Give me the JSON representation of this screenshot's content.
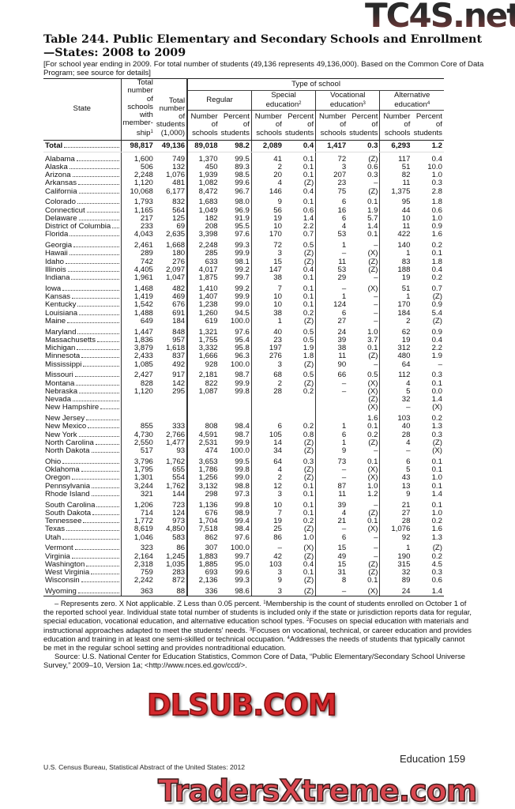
{
  "title": "Table 244. Public Elementary and Secondary Schools and Enrollment—States: 2008 to 2009",
  "headnote": "[For school year ending in 2009. For total number of students (49,136 represents 49,136,000). Based on the Common Core of Data Program; see source for details]",
  "header": {
    "state": "State",
    "total_schools": "Total number of schools with member- ship",
    "total_schools_sup": "1",
    "total_students": "Total number of students (1,000)",
    "type_of_school": "Type of school",
    "groups": [
      {
        "label": "Regular",
        "sup": ""
      },
      {
        "label": "Special education",
        "sup": "2"
      },
      {
        "label": "Vocational education",
        "sup": "3"
      },
      {
        "label": "Alternative education",
        "sup": "4"
      }
    ],
    "number_label": "Number of schools",
    "percent_label": "Percent of students"
  },
  "total_row": [
    "Total",
    "98,817",
    "49,136",
    "89,018",
    "98.2",
    "2,089",
    "0.4",
    "1,417",
    "0.3",
    "6,293",
    "1.2"
  ],
  "rows": [
    [
      "Alabama",
      "1,600",
      "749",
      "1,370",
      "99.5",
      "41",
      "0.1",
      "72",
      "(Z)",
      "117",
      "0.4"
    ],
    [
      "Alaska",
      "506",
      "132",
      "450",
      "89.3",
      "2",
      "0.1",
      "3",
      "0.6",
      "51",
      "10.0"
    ],
    [
      "Arizona",
      "2,248",
      "1,076",
      "1,939",
      "98.5",
      "20",
      "0.1",
      "207",
      "0.3",
      "82",
      "1.0"
    ],
    [
      "Arkansas",
      "1,120",
      "481",
      "1,082",
      "99.6",
      "4",
      "(Z)",
      "23",
      "–",
      "11",
      "0.3"
    ],
    [
      "California",
      "10,068",
      "6,177",
      "8,472",
      "96.7",
      "146",
      "0.4",
      "75",
      "(Z)",
      "1,375",
      "2.8"
    ],
    [
      "Colorado",
      "1,793",
      "832",
      "1,683",
      "98.0",
      "9",
      "0.1",
      "6",
      "0.1",
      "95",
      "1.8"
    ],
    [
      "Connecticut",
      "1,165",
      "564",
      "1,049",
      "96.9",
      "56",
      "0.6",
      "16",
      "1.9",
      "44",
      "0.6"
    ],
    [
      "Delaware",
      "217",
      "125",
      "182",
      "91.9",
      "19",
      "1.4",
      "6",
      "5.7",
      "10",
      "1.0"
    ],
    [
      "District of Columbia",
      "233",
      "69",
      "208",
      "95.5",
      "10",
      "2.2",
      "4",
      "1.4",
      "11",
      "0.9"
    ],
    [
      "Florida",
      "4,043",
      "2,635",
      "3,398",
      "97.6",
      "170",
      "0.7",
      "53",
      "0.1",
      "422",
      "1.6"
    ],
    [
      "Georgia",
      "2,461",
      "1,668",
      "2,248",
      "99.3",
      "72",
      "0.5",
      "1",
      "–",
      "140",
      "0.2"
    ],
    [
      "Hawaii",
      "289",
      "180",
      "285",
      "99.9",
      "3",
      "(Z)",
      "–",
      "(X)",
      "1",
      "0.1"
    ],
    [
      "Idaho",
      "742",
      "276",
      "633",
      "98.1",
      "15",
      "(Z)",
      "11",
      "(Z)",
      "83",
      "1.8"
    ],
    [
      "Illinois",
      "4,405",
      "2,097",
      "4,017",
      "99.2",
      "147",
      "0.4",
      "53",
      "(Z)",
      "188",
      "0.4"
    ],
    [
      "Indiana",
      "1,961",
      "1,047",
      "1,875",
      "99.7",
      "38",
      "0.1",
      "29",
      "–",
      "19",
      "0.2"
    ],
    [
      "Iowa",
      "1,468",
      "482",
      "1,410",
      "99.2",
      "7",
      "0.1",
      "–",
      "(X)",
      "51",
      "0.7"
    ],
    [
      "Kansas",
      "1,419",
      "469",
      "1,407",
      "99.9",
      "10",
      "0.1",
      "1",
      "–",
      "1",
      "(Z)"
    ],
    [
      "Kentucky",
      "1,542",
      "676",
      "1,238",
      "99.0",
      "10",
      "0.1",
      "124",
      "–",
      "170",
      "0.9"
    ],
    [
      "Louisiana",
      "1,488",
      "691",
      "1,260",
      "94.5",
      "38",
      "0.2",
      "6",
      "–",
      "184",
      "5.4"
    ],
    [
      "Maine",
      "649",
      "184",
      "619",
      "100.0",
      "1",
      "(Z)",
      "27",
      "–",
      "2",
      "(Z)"
    ],
    [
      "Maryland",
      "1,447",
      "848",
      "1,321",
      "97.6",
      "40",
      "0.5",
      "24",
      "1.0",
      "62",
      "0.9"
    ],
    [
      "Massachusetts",
      "1,836",
      "957",
      "1,755",
      "95.4",
      "23",
      "0.5",
      "39",
      "3.7",
      "19",
      "0.4"
    ],
    [
      "Michigan",
      "3,879",
      "1,618",
      "3,332",
      "95.8",
      "197",
      "1.9",
      "38",
      "0.1",
      "312",
      "2.2"
    ],
    [
      "Minnesota",
      "2,433",
      "837",
      "1,666",
      "96.3",
      "276",
      "1.8",
      "11",
      "(Z)",
      "480",
      "1.9"
    ],
    [
      "Mississippi",
      "1,085",
      "492",
      "928",
      "100.0",
      "3",
      "(Z)",
      "90",
      "–",
      "64",
      "–"
    ],
    [
      "Missouri",
      "2,427",
      "917",
      "2,181",
      "98.7",
      "68",
      "0.5",
      "66",
      "0.5",
      "112",
      "0.3"
    ],
    [
      "Montana",
      "828",
      "142",
      "822",
      "99.9",
      "2",
      "(Z)",
      "–",
      "(X)",
      "4",
      "0.1"
    ],
    [
      "Nebraska",
      "1,120",
      "295",
      "1,087",
      "99.8",
      "28",
      "0.2",
      "–",
      "(X)",
      "5",
      "0.0"
    ],
    [
      "Nevada",
      "",
      "",
      "",
      "",
      "",
      "",
      "",
      "(Z)",
      "32",
      "1.4"
    ],
    [
      "New Hampshire",
      "",
      "",
      "",
      "",
      "",
      "",
      "",
      "(X)",
      "–",
      "(X)"
    ],
    [
      "New Jersey",
      "",
      "",
      "",
      "",
      "",
      "",
      "",
      "1.6",
      "103",
      "0.2"
    ],
    [
      "New Mexico",
      "855",
      "333",
      "808",
      "98.4",
      "6",
      "0.2",
      "1",
      "0.1",
      "40",
      "1.3"
    ],
    [
      "New York",
      "4,730",
      "2,766",
      "4,591",
      "98.7",
      "105",
      "0.8",
      "6",
      "0.2",
      "28",
      "0.3"
    ],
    [
      "North Carolina",
      "2,550",
      "1,477",
      "2,531",
      "99.9",
      "14",
      "(Z)",
      "1",
      "(Z)",
      "4",
      "(Z)"
    ],
    [
      "North Dakota",
      "517",
      "93",
      "474",
      "100.0",
      "34",
      "(Z)",
      "9",
      "–",
      "–",
      "(X)"
    ],
    [
      "Ohio",
      "3,796",
      "1,762",
      "3,653",
      "99.5",
      "64",
      "0.3",
      "73",
      "0.1",
      "6",
      "0.1"
    ],
    [
      "Oklahoma",
      "1,795",
      "655",
      "1,786",
      "99.8",
      "4",
      "(Z)",
      "–",
      "(X)",
      "5",
      "0.1"
    ],
    [
      "Oregon",
      "1,301",
      "554",
      "1,256",
      "99.0",
      "2",
      "(Z)",
      "–",
      "(X)",
      "43",
      "1.0"
    ],
    [
      "Pennsylvania",
      "3,244",
      "1,762",
      "3,132",
      "98.8",
      "12",
      "0.1",
      "87",
      "1.0",
      "13",
      "0.1"
    ],
    [
      "Rhode Island",
      "321",
      "144",
      "298",
      "97.3",
      "3",
      "0.1",
      "11",
      "1.2",
      "9",
      "1.4"
    ],
    [
      "South Carolina",
      "1,206",
      "723",
      "1,136",
      "99.8",
      "10",
      "0.1",
      "39",
      "–",
      "21",
      "0.1"
    ],
    [
      "South Dakota",
      "714",
      "124",
      "676",
      "98.9",
      "7",
      "0.1",
      "4",
      "(Z)",
      "27",
      "1.0"
    ],
    [
      "Tennessee",
      "1,772",
      "973",
      "1,704",
      "99.4",
      "19",
      "0.2",
      "21",
      "0.1",
      "28",
      "0.2"
    ],
    [
      "Texas",
      "8,619",
      "4,850",
      "7,518",
      "98.4",
      "25",
      "(Z)",
      "–",
      "(X)",
      "1,076",
      "1.6"
    ],
    [
      "Utah",
      "1,046",
      "583",
      "862",
      "97.6",
      "86",
      "1.0",
      "6",
      "–",
      "92",
      "1.3"
    ],
    [
      "Vermont",
      "323",
      "86",
      "307",
      "100.0",
      "–",
      "(X)",
      "15",
      "–",
      "1",
      "(Z)"
    ],
    [
      "Virginia",
      "2,164",
      "1,245",
      "1,883",
      "99.7",
      "42",
      "(Z)",
      "49",
      "–",
      "190",
      "0.2"
    ],
    [
      "Washington",
      "2,318",
      "1,035",
      "1,885",
      "95.0",
      "103",
      "0.4",
      "15",
      "(Z)",
      "315",
      "4.5"
    ],
    [
      "West Virginia",
      "759",
      "283",
      "693",
      "99.6",
      "3",
      "0.1",
      "31",
      "(Z)",
      "32",
      "0.3"
    ],
    [
      "Wisconsin",
      "2,242",
      "872",
      "2,136",
      "99.3",
      "9",
      "(Z)",
      "8",
      "0.1",
      "89",
      "0.6"
    ],
    [
      "Wyoming",
      "363",
      "88",
      "336",
      "98.6",
      "3",
      "(Z)",
      "–",
      "(X)",
      "24",
      "1.4"
    ]
  ],
  "footnotes": [
    {
      "t": "– Represents zero. X Not applicable. Z Less than 0.05 percent. "
    },
    {
      "s": "1"
    },
    {
      "t": "Membership is the count of students enrolled on October 1 of the reported school year. Individual state total number of students is included only if the state or jurisdiction reports data for regular, special education, vocational education, and alternative education school types. "
    },
    {
      "s": "2"
    },
    {
      "t": "Focuses on special education with materials and instructional approaches adapted to meet the students' needs. "
    },
    {
      "s": "3"
    },
    {
      "t": "Focuses on vocational, technical, or career education and provides education and training in at least one semi-skilled or technical occupation. "
    },
    {
      "s": "4"
    },
    {
      "t": "Addresses the needs of students that typically cannot be met in the regular school setting and provides nontraditional education."
    }
  ],
  "source": "Source: U.S. National Center for Education Statistics, Common Core of Data, “Public Elementary/Secondary School Universe Survey,” 2009–10, Version 1a; <http://www.nces.ed.gov/ccd/>.",
  "footer": {
    "left": "U.S. Census Bureau, Statistical Abstract of the United States: 2012",
    "right": "Education 159"
  },
  "watermarks": {
    "top": "TC4S.net",
    "middle": "DLSUB.COM",
    "bottom": "TradersXtreme.com"
  }
}
